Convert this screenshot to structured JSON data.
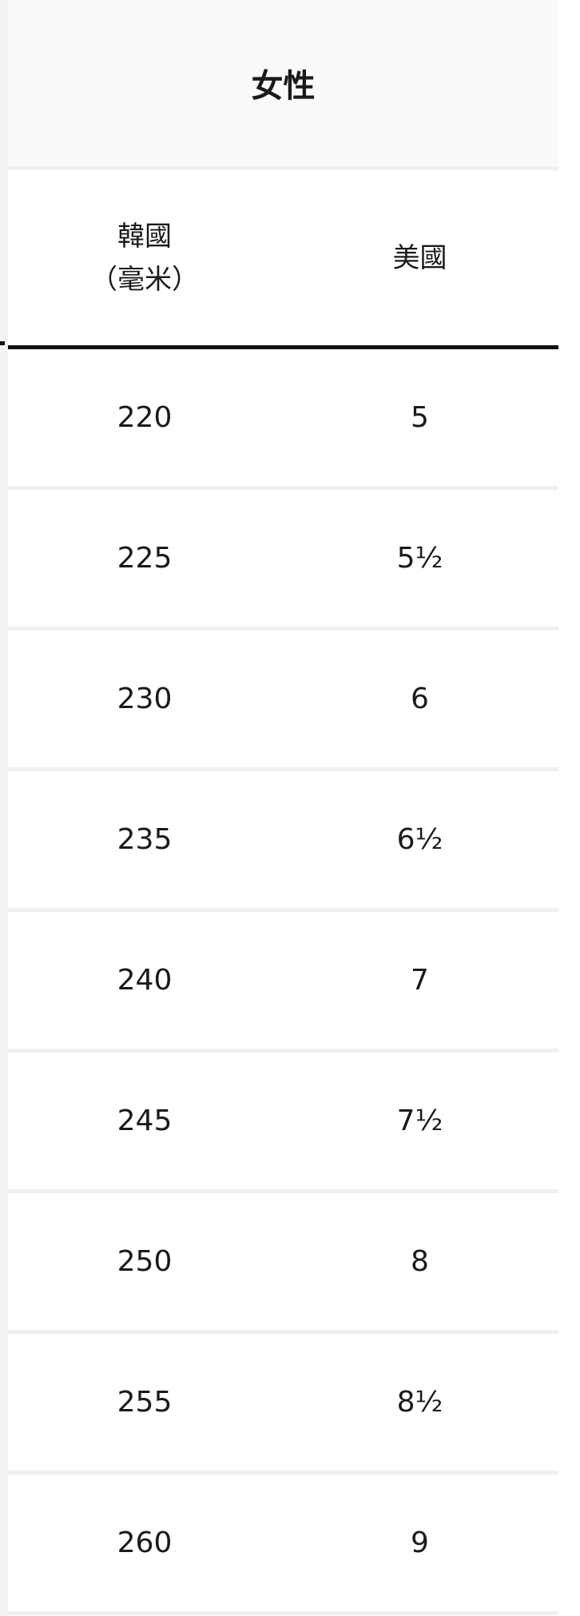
{
  "title": "女性",
  "headers": [
    "韓國\n（毫米）",
    "美國"
  ],
  "header_kr": "韓國",
  "header_kr_unit": "（毫米）",
  "header_us": "美國",
  "rows": [
    {
      "kr": "220",
      "us": "5"
    },
    {
      "kr": "225",
      "us": "5½"
    },
    {
      "kr": "230",
      "us": "6"
    },
    {
      "kr": "235",
      "us": "6½"
    },
    {
      "kr": "240",
      "us": "7"
    },
    {
      "kr": "245",
      "us": "7½"
    },
    {
      "kr": "250",
      "us": "8"
    },
    {
      "kr": "255",
      "us": "8½"
    },
    {
      "kr": "260",
      "us": "9"
    }
  ]
}
